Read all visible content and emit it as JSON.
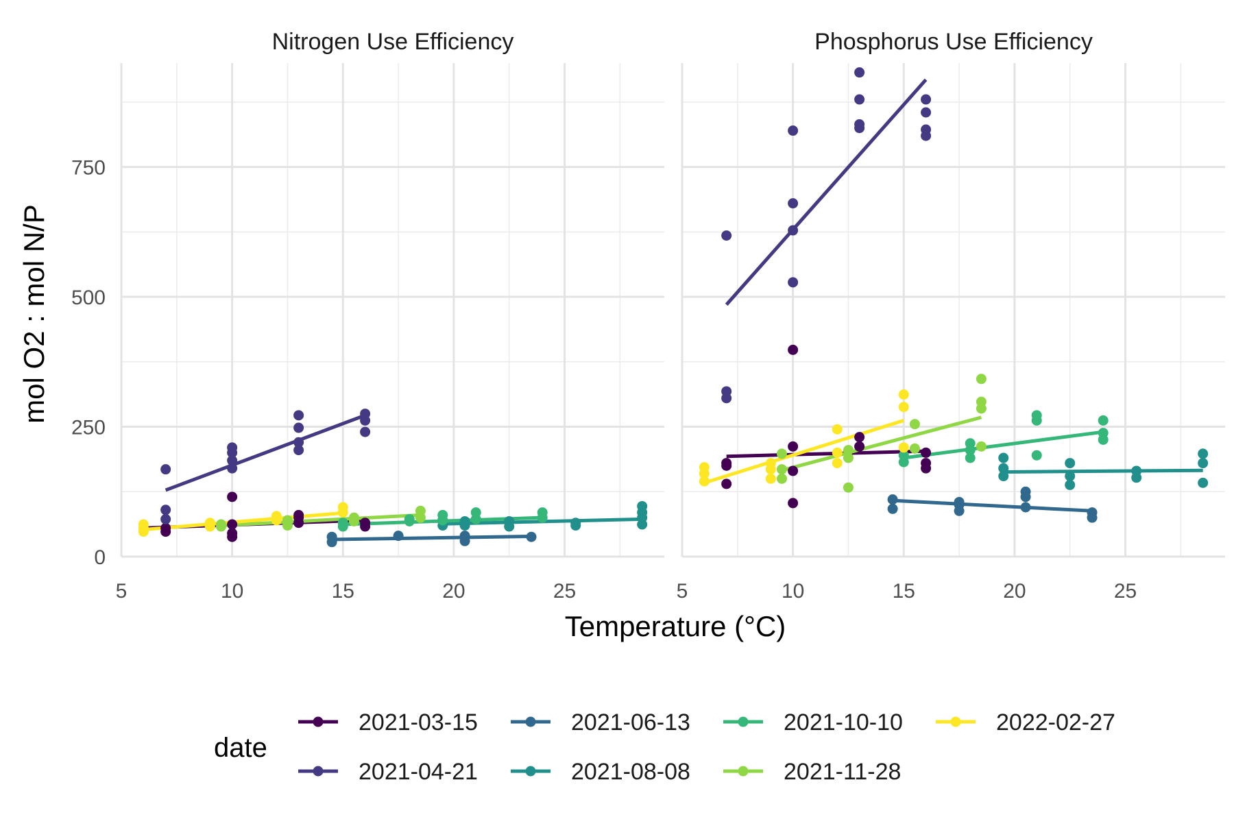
{
  "chart_data": {
    "type": "scatter",
    "xlabel": "Temperature (°C)",
    "ylabel": "mol O2 : mol N/P",
    "xlim": [
      5,
      29.5
    ],
    "ylim": [
      0,
      950
    ],
    "xticks": [
      5,
      10,
      15,
      20,
      25
    ],
    "yticks": [
      0,
      250,
      500,
      750
    ],
    "grid": true,
    "legend": {
      "title": "date",
      "position": "bottom",
      "entries": [
        "2021-03-15",
        "2021-04-21",
        "2021-06-13",
        "2021-08-08",
        "2021-10-10",
        "2021-11-28",
        "2022-02-27"
      ]
    },
    "panels": [
      {
        "title": "Nitrogen Use Efficiency",
        "series": [
          {
            "name": "2021-03-15",
            "color": "#440154",
            "points": [
              [
                7,
                48
              ],
              [
                7,
                55
              ],
              [
                10,
                38
              ],
              [
                10,
                45
              ],
              [
                10,
                62
              ],
              [
                10,
                115
              ],
              [
                13,
                65
              ],
              [
                13,
                75
              ],
              [
                13,
                80
              ],
              [
                16,
                58
              ],
              [
                16,
                65
              ]
            ],
            "fit": [
              [
                6,
                55
              ],
              [
                16,
                70
              ]
            ]
          },
          {
            "name": "2021-04-21",
            "color": "#443A83",
            "points": [
              [
                7,
                168
              ],
              [
                7,
                90
              ],
              [
                7,
                72
              ],
              [
                10,
                210
              ],
              [
                10,
                200
              ],
              [
                10,
                185
              ],
              [
                10,
                170
              ],
              [
                13,
                272
              ],
              [
                13,
                248
              ],
              [
                13,
                220
              ],
              [
                13,
                205
              ],
              [
                16,
                275
              ],
              [
                16,
                262
              ],
              [
                16,
                240
              ]
            ],
            "fit": [
              [
                7,
                128
              ],
              [
                16,
                272
              ]
            ]
          },
          {
            "name": "2021-06-13",
            "color": "#31688E",
            "points": [
              [
                14.5,
                28
              ],
              [
                14.5,
                38
              ],
              [
                17.5,
                40
              ],
              [
                20.5,
                30
              ],
              [
                20.5,
                40
              ],
              [
                23.5,
                38
              ]
            ],
            "fit": [
              [
                14.5,
                33
              ],
              [
                23.5,
                39
              ]
            ]
          },
          {
            "name": "2021-08-08",
            "color": "#21908C",
            "points": [
              [
                19.5,
                60
              ],
              [
                19.5,
                70
              ],
              [
                20.5,
                60
              ],
              [
                20.5,
                68
              ],
              [
                22.5,
                58
              ],
              [
                22.5,
                68
              ],
              [
                25.5,
                60
              ],
              [
                25.5,
                65
              ],
              [
                28.5,
                62
              ],
              [
                28.5,
                75
              ],
              [
                28.5,
                85
              ],
              [
                28.5,
                97
              ]
            ],
            "fit": [
              [
                19.5,
                63
              ],
              [
                28.5,
                72
              ]
            ]
          },
          {
            "name": "2021-10-10",
            "color": "#35B779",
            "points": [
              [
                15,
                58
              ],
              [
                15,
                65
              ],
              [
                18,
                68
              ],
              [
                18,
                72
              ],
              [
                19.5,
                70
              ],
              [
                19.5,
                80
              ],
              [
                21,
                72
              ],
              [
                21,
                85
              ],
              [
                24,
                75
              ],
              [
                24,
                85
              ]
            ],
            "fit": [
              [
                15,
                62
              ],
              [
                24,
                75
              ]
            ]
          },
          {
            "name": "2021-11-28",
            "color": "#8FD744",
            "points": [
              [
                9.5,
                58
              ],
              [
                9.5,
                62
              ],
              [
                12.5,
                60
              ],
              [
                12.5,
                70
              ],
              [
                15.5,
                68
              ],
              [
                15.5,
                75
              ],
              [
                18.5,
                75
              ],
              [
                18.5,
                88
              ]
            ],
            "fit": [
              [
                9.5,
                60
              ],
              [
                18.5,
                80
              ]
            ]
          },
          {
            "name": "2022-02-27",
            "color": "#FDE725",
            "points": [
              [
                6,
                48
              ],
              [
                6,
                55
              ],
              [
                6,
                62
              ],
              [
                9,
                58
              ],
              [
                9,
                65
              ],
              [
                12,
                70
              ],
              [
                12,
                78
              ],
              [
                15,
                85
              ],
              [
                15,
                95
              ]
            ],
            "fit": [
              [
                6,
                52
              ],
              [
                15,
                84
              ]
            ]
          }
        ]
      },
      {
        "title": "Phosphorus Use Efficiency",
        "series": [
          {
            "name": "2021-03-15",
            "color": "#440154",
            "points": [
              [
                7,
                140
              ],
              [
                7,
                175
              ],
              [
                7,
                180
              ],
              [
                10,
                103
              ],
              [
                10,
                165
              ],
              [
                10,
                212
              ],
              [
                10,
                398
              ],
              [
                13,
                212
              ],
              [
                13,
                230
              ],
              [
                16,
                170
              ],
              [
                16,
                180
              ],
              [
                16,
                200
              ]
            ],
            "fit": [
              [
                7,
                193
              ],
              [
                16,
                203
              ]
            ]
          },
          {
            "name": "2021-04-21",
            "color": "#443A83",
            "points": [
              [
                7,
                618
              ],
              [
                7,
                318
              ],
              [
                7,
                305
              ],
              [
                10,
                820
              ],
              [
                10,
                680
              ],
              [
                10,
                628
              ],
              [
                10,
                528
              ],
              [
                13,
                932
              ],
              [
                13,
                880
              ],
              [
                13,
                832
              ],
              [
                13,
                825
              ],
              [
                16,
                880
              ],
              [
                16,
                855
              ],
              [
                16,
                822
              ],
              [
                16,
                810
              ]
            ],
            "fit": [
              [
                7,
                485
              ],
              [
                16,
                918
              ]
            ]
          },
          {
            "name": "2021-06-13",
            "color": "#31688E",
            "points": [
              [
                14.5,
                92
              ],
              [
                14.5,
                110
              ],
              [
                17.5,
                88
              ],
              [
                17.5,
                100
              ],
              [
                17.5,
                105
              ],
              [
                20.5,
                95
              ],
              [
                20.5,
                115
              ],
              [
                20.5,
                125
              ],
              [
                23.5,
                75
              ],
              [
                23.5,
                85
              ]
            ],
            "fit": [
              [
                14.5,
                108
              ],
              [
                23.5,
                88
              ]
            ]
          },
          {
            "name": "2021-08-08",
            "color": "#21908C",
            "points": [
              [
                19.5,
                155
              ],
              [
                19.5,
                170
              ],
              [
                19.5,
                190
              ],
              [
                22.5,
                138
              ],
              [
                22.5,
                155
              ],
              [
                22.5,
                180
              ],
              [
                25.5,
                152
              ],
              [
                25.5,
                165
              ],
              [
                28.5,
                142
              ],
              [
                28.5,
                180
              ],
              [
                28.5,
                198
              ]
            ],
            "fit": [
              [
                19.5,
                163
              ],
              [
                28.5,
                166
              ]
            ]
          },
          {
            "name": "2021-10-10",
            "color": "#35B779",
            "points": [
              [
                15,
                182
              ],
              [
                15,
                195
              ],
              [
                18,
                190
              ],
              [
                18,
                205
              ],
              [
                18,
                218
              ],
              [
                21,
                195
              ],
              [
                21,
                262
              ],
              [
                21,
                272
              ],
              [
                24,
                225
              ],
              [
                24,
                238
              ],
              [
                24,
                262
              ]
            ],
            "fit": [
              [
                15,
                190
              ],
              [
                24,
                240
              ]
            ]
          },
          {
            "name": "2021-11-28",
            "color": "#8FD744",
            "points": [
              [
                9.5,
                150
              ],
              [
                9.5,
                168
              ],
              [
                9.5,
                198
              ],
              [
                12.5,
                133
              ],
              [
                12.5,
                190
              ],
              [
                12.5,
                205
              ],
              [
                15.5,
                208
              ],
              [
                15.5,
                255
              ],
              [
                18.5,
                212
              ],
              [
                18.5,
                285
              ],
              [
                18.5,
                298
              ],
              [
                18.5,
                342
              ]
            ],
            "fit": [
              [
                9.5,
                166
              ],
              [
                18.5,
                268
              ]
            ]
          },
          {
            "name": "2022-02-27",
            "color": "#FDE725",
            "points": [
              [
                6,
                145
              ],
              [
                6,
                160
              ],
              [
                6,
                172
              ],
              [
                9,
                150
              ],
              [
                9,
                168
              ],
              [
                9,
                180
              ],
              [
                12,
                180
              ],
              [
                12,
                200
              ],
              [
                12,
                245
              ],
              [
                15,
                210
              ],
              [
                15,
                288
              ],
              [
                15,
                312
              ]
            ],
            "fit": [
              [
                6,
                142
              ],
              [
                15,
                262
              ]
            ]
          }
        ]
      }
    ]
  }
}
